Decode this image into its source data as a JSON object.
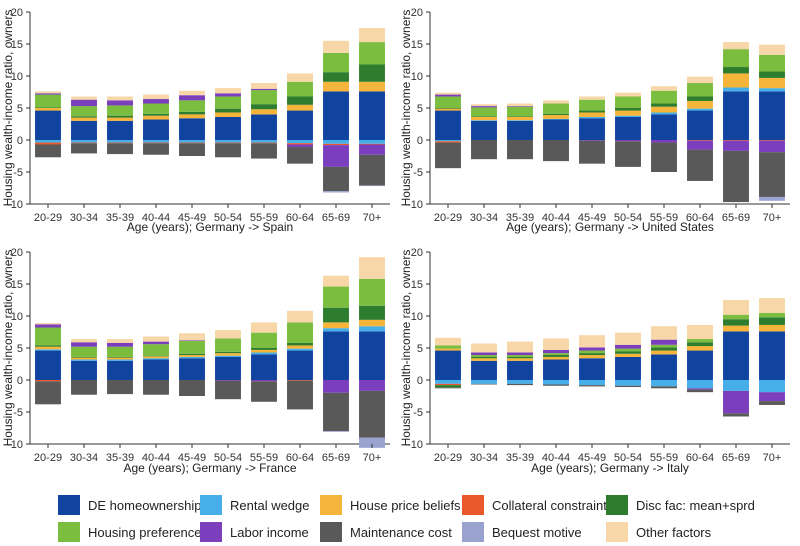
{
  "legend": [
    {
      "key": "de_home",
      "label": "DE homeownership",
      "color": "#11449e"
    },
    {
      "key": "rental",
      "label": "Rental wedge",
      "color": "#46aee8"
    },
    {
      "key": "hpb",
      "label": "House price beliefs",
      "color": "#f5b43a"
    },
    {
      "key": "collat",
      "label": "Collateral constraint",
      "color": "#e8582a"
    },
    {
      "key": "disc",
      "label": "Disc fac: mean+sprd",
      "color": "#2e7d2e"
    },
    {
      "key": "housing",
      "label": "Housing preference",
      "color": "#7bbd3f"
    },
    {
      "key": "labor",
      "label": "Labor income",
      "color": "#7b3fbe"
    },
    {
      "key": "maint",
      "label": "Maintenance cost",
      "color": "#595959"
    },
    {
      "key": "bequest",
      "label": "Bequest motive",
      "color": "#9aa3d0"
    },
    {
      "key": "other",
      "label": "Other factors",
      "color": "#f7d7a8"
    }
  ],
  "chart_data": [
    {
      "type": "bar",
      "stacked": true,
      "xlabel": "Age (years); Germany -> Spain",
      "ylabel": "Housing wealth-income ratio, owners",
      "ylim": [
        -10,
        20
      ],
      "yticks": [
        -10,
        -5,
        0,
        5,
        10,
        15,
        20
      ],
      "categories": [
        "20-29",
        "30-34",
        "35-39",
        "40-44",
        "45-49",
        "50-54",
        "55-59",
        "60-64",
        "65-69",
        "70+"
      ],
      "series": [
        {
          "key": "de_home",
          "values": [
            4.6,
            3.0,
            3.0,
            3.2,
            3.4,
            3.6,
            4.0,
            4.6,
            7.6,
            7.6
          ]
        },
        {
          "key": "rental",
          "values": [
            -0.4,
            -0.4,
            -0.4,
            -0.4,
            -0.4,
            -0.4,
            -0.4,
            -0.5,
            -0.6,
            -0.6
          ]
        },
        {
          "key": "hpb",
          "values": [
            0.4,
            0.5,
            0.5,
            0.6,
            0.6,
            0.7,
            0.8,
            0.9,
            1.5,
            1.5
          ]
        },
        {
          "key": "collat",
          "values": [
            -0.3,
            -0.1,
            -0.1,
            -0.1,
            -0.1,
            -0.1,
            -0.1,
            -0.2,
            -0.2,
            -0.1
          ]
        },
        {
          "key": "disc",
          "values": [
            0.1,
            0.2,
            0.3,
            0.3,
            0.4,
            0.6,
            0.8,
            1.3,
            1.5,
            2.7
          ]
        },
        {
          "key": "housing",
          "values": [
            2.0,
            1.6,
            1.6,
            1.6,
            1.8,
            1.9,
            2.2,
            2.3,
            3.0,
            3.5
          ]
        },
        {
          "key": "labor",
          "values": [
            0.2,
            1.0,
            0.8,
            0.7,
            0.8,
            0.5,
            0.2,
            -0.4,
            -3.4,
            -1.6
          ]
        },
        {
          "key": "maint",
          "values": [
            -2.0,
            -1.6,
            -1.7,
            -1.8,
            -2.0,
            -2.2,
            -2.4,
            -2.6,
            -3.8,
            -4.8
          ]
        },
        {
          "key": "bequest",
          "values": [
            0.0,
            0.0,
            0.0,
            0.0,
            0.0,
            0.0,
            0.0,
            0.0,
            -0.2,
            -0.1
          ]
        },
        {
          "key": "other",
          "values": [
            0.3,
            0.5,
            0.6,
            0.7,
            0.7,
            0.8,
            0.9,
            1.3,
            1.9,
            2.2
          ]
        }
      ]
    },
    {
      "type": "bar",
      "stacked": true,
      "xlabel": "Age (years); Germany -> United States",
      "ylabel": "Housing wealth-income ratio, owners",
      "ylim": [
        -10,
        20
      ],
      "yticks": [
        -10,
        -5,
        0,
        5,
        10,
        15,
        20
      ],
      "categories": [
        "20-29",
        "30-34",
        "35-39",
        "40-44",
        "45-49",
        "50-54",
        "55-59",
        "60-64",
        "65-69",
        "70+"
      ],
      "series": [
        {
          "key": "de_home",
          "values": [
            4.6,
            3.0,
            3.0,
            3.2,
            3.4,
            3.6,
            4.0,
            4.6,
            7.6,
            7.6
          ]
        },
        {
          "key": "rental",
          "values": [
            -0.2,
            0.1,
            0.1,
            0.1,
            0.2,
            0.2,
            0.3,
            0.3,
            0.6,
            0.5
          ]
        },
        {
          "key": "hpb",
          "values": [
            0.3,
            0.5,
            0.5,
            0.6,
            0.7,
            0.8,
            0.9,
            1.2,
            2.2,
            1.6
          ]
        },
        {
          "key": "collat",
          "values": [
            -0.2,
            0.0,
            0.0,
            0.0,
            0.0,
            0.0,
            0.0,
            -0.1,
            -0.1,
            -0.1
          ]
        },
        {
          "key": "disc",
          "values": [
            0.1,
            0.1,
            0.1,
            0.2,
            0.3,
            0.4,
            0.5,
            0.7,
            1.0,
            1.0
          ]
        },
        {
          "key": "housing",
          "values": [
            1.8,
            1.4,
            1.5,
            1.6,
            1.7,
            1.8,
            2.0,
            2.1,
            2.8,
            2.6
          ]
        },
        {
          "key": "labor",
          "values": [
            0.3,
            0.2,
            0.1,
            0.0,
            -0.1,
            -0.2,
            -0.4,
            -1.4,
            -1.6,
            -1.8
          ]
        },
        {
          "key": "maint",
          "values": [
            -4.0,
            -3.0,
            -3.0,
            -3.3,
            -3.6,
            -4.0,
            -4.6,
            -4.9,
            -8.0,
            -7.0
          ]
        },
        {
          "key": "bequest",
          "values": [
            0.0,
            0.0,
            0.0,
            0.0,
            0.0,
            0.0,
            0.0,
            0.0,
            0.0,
            -0.6
          ]
        },
        {
          "key": "other",
          "values": [
            0.3,
            0.3,
            0.4,
            0.5,
            0.5,
            0.6,
            0.7,
            1.0,
            1.1,
            1.6
          ]
        }
      ]
    },
    {
      "type": "bar",
      "stacked": true,
      "xlabel": "Age (years); Germany -> France",
      "ylabel": "Housing wealth-income ratio, owners",
      "ylim": [
        -10,
        20
      ],
      "yticks": [
        -10,
        -5,
        0,
        5,
        10,
        15,
        20
      ],
      "categories": [
        "20-29",
        "30-34",
        "35-39",
        "40-44",
        "45-49",
        "50-54",
        "55-59",
        "60-64",
        "65-69",
        "70+"
      ],
      "series": [
        {
          "key": "de_home",
          "values": [
            4.6,
            3.0,
            3.0,
            3.2,
            3.4,
            3.6,
            4.0,
            4.6,
            7.6,
            7.6
          ]
        },
        {
          "key": "rental",
          "values": [
            0.2,
            0.2,
            0.2,
            0.2,
            0.2,
            0.2,
            0.3,
            0.3,
            0.5,
            0.8
          ]
        },
        {
          "key": "hpb",
          "values": [
            0.4,
            0.3,
            0.3,
            0.3,
            0.3,
            0.4,
            0.4,
            0.5,
            0.9,
            1.0
          ]
        },
        {
          "key": "collat",
          "values": [
            -0.2,
            0.0,
            0.0,
            0.0,
            0.0,
            0.0,
            0.0,
            -0.1,
            0.0,
            0.0
          ]
        },
        {
          "key": "disc",
          "values": [
            0.2,
            0.1,
            0.1,
            0.1,
            0.2,
            0.2,
            0.3,
            0.4,
            2.3,
            2.2
          ]
        },
        {
          "key": "housing",
          "values": [
            2.8,
            1.6,
            1.6,
            1.8,
            2.0,
            2.1,
            2.4,
            3.2,
            3.3,
            4.2
          ]
        },
        {
          "key": "labor",
          "values": [
            0.5,
            0.7,
            0.6,
            0.4,
            0.1,
            -0.1,
            -0.2,
            0.0,
            -2.0,
            -1.7
          ]
        },
        {
          "key": "maint",
          "values": [
            -3.6,
            -2.3,
            -2.2,
            -2.3,
            -2.5,
            -2.9,
            -3.2,
            -4.5,
            -6.0,
            -7.3
          ]
        },
        {
          "key": "bequest",
          "values": [
            0.0,
            0.0,
            0.0,
            0.0,
            0.0,
            0.0,
            0.0,
            0.0,
            -0.1,
            -1.6
          ]
        },
        {
          "key": "other",
          "values": [
            0.2,
            0.5,
            0.6,
            0.8,
            1.1,
            1.3,
            1.6,
            1.8,
            1.7,
            3.4
          ]
        }
      ]
    },
    {
      "type": "bar",
      "stacked": true,
      "xlabel": "Age (years); Germany -> Italy",
      "ylabel": "Housing wealth-income ratio, owners",
      "ylim": [
        -10,
        20
      ],
      "yticks": [
        -10,
        -5,
        0,
        5,
        10,
        15,
        20
      ],
      "categories": [
        "20-29",
        "30-34",
        "35-39",
        "40-44",
        "45-49",
        "50-54",
        "55-59",
        "60-64",
        "65-69",
        "70+"
      ],
      "series": [
        {
          "key": "de_home",
          "values": [
            4.6,
            3.0,
            3.0,
            3.2,
            3.4,
            3.6,
            4.0,
            4.6,
            7.6,
            7.6
          ]
        },
        {
          "key": "rental",
          "values": [
            -0.6,
            -0.6,
            -0.6,
            -0.7,
            -0.8,
            -0.9,
            -1.0,
            -1.3,
            -1.7,
            -1.9
          ]
        },
        {
          "key": "hpb",
          "values": [
            0.3,
            0.4,
            0.4,
            0.4,
            0.5,
            0.5,
            0.6,
            0.7,
            0.9,
            1.0
          ]
        },
        {
          "key": "collat",
          "values": [
            -0.2,
            0.0,
            0.0,
            0.0,
            0.0,
            0.0,
            0.0,
            0.0,
            0.0,
            0.0
          ]
        },
        {
          "key": "disc",
          "values": [
            -0.4,
            0.2,
            0.2,
            0.3,
            0.3,
            0.4,
            0.5,
            0.6,
            1.0,
            1.2
          ]
        },
        {
          "key": "housing",
          "values": [
            0.5,
            0.3,
            0.3,
            0.3,
            0.4,
            0.4,
            0.4,
            0.5,
            0.7,
            0.7
          ]
        },
        {
          "key": "labor",
          "values": [
            0.0,
            0.4,
            0.4,
            0.5,
            0.5,
            0.6,
            0.8,
            -0.2,
            -3.5,
            -1.4
          ]
        },
        {
          "key": "maint",
          "values": [
            -0.1,
            -0.1,
            -0.2,
            -0.2,
            -0.2,
            -0.2,
            -0.3,
            -0.4,
            -0.5,
            -0.6
          ]
        },
        {
          "key": "bequest",
          "values": [
            0.0,
            0.0,
            0.0,
            0.0,
            0.0,
            0.0,
            0.0,
            0.0,
            0.0,
            0.0
          ]
        },
        {
          "key": "other",
          "values": [
            1.2,
            1.4,
            1.7,
            1.8,
            1.9,
            1.9,
            2.1,
            2.2,
            2.3,
            2.3
          ]
        }
      ]
    }
  ]
}
